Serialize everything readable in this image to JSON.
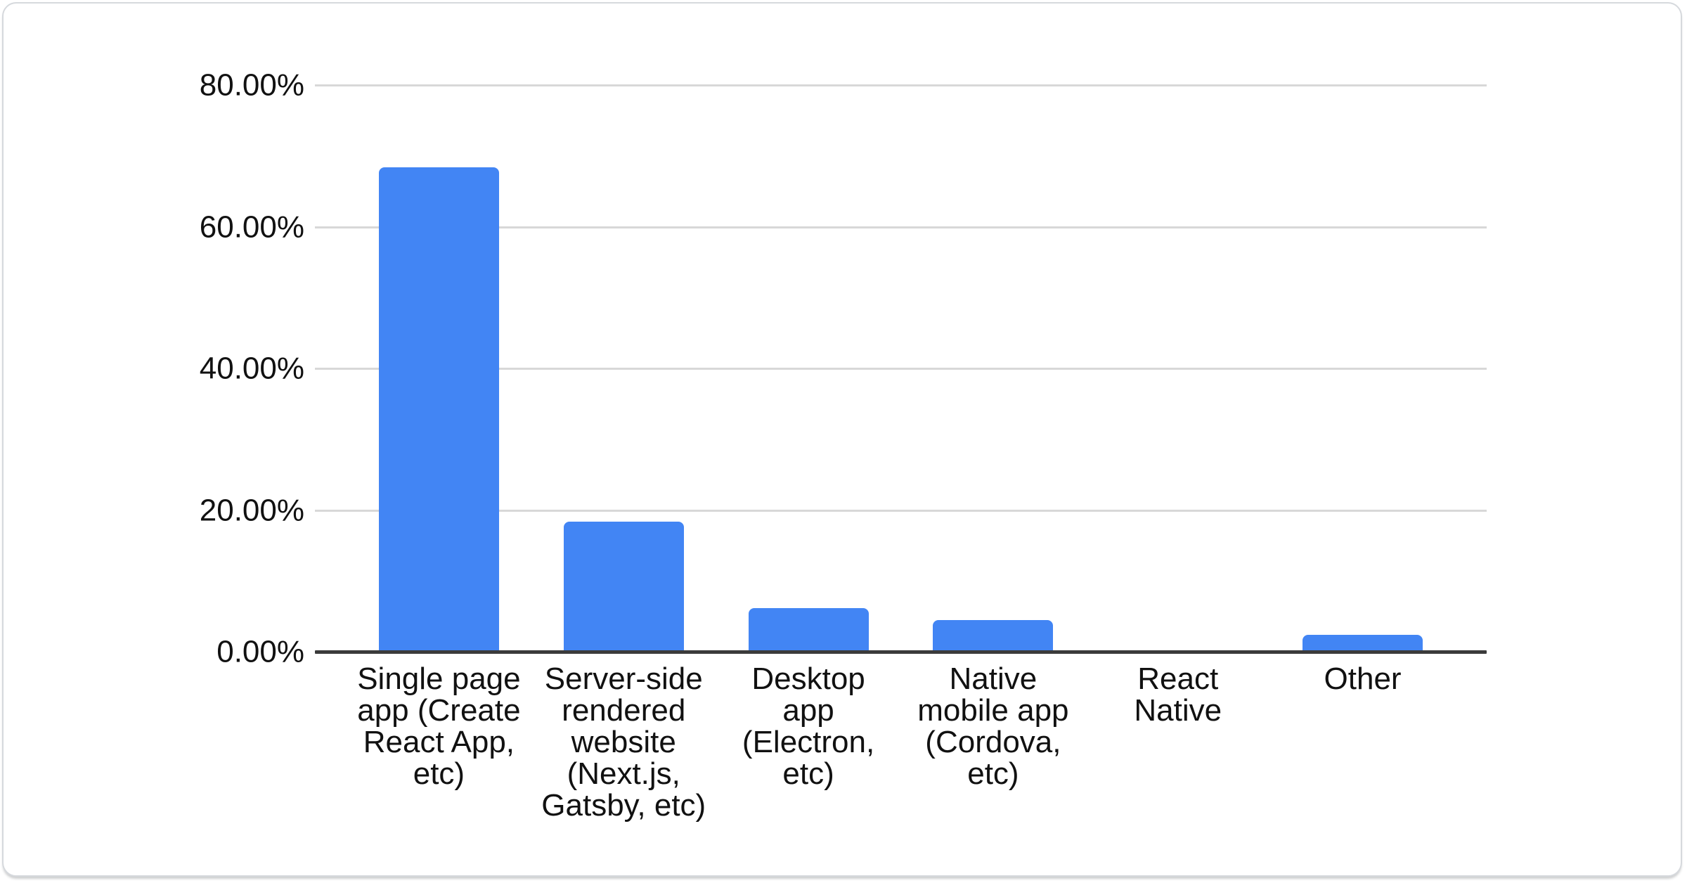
{
  "card": {
    "background": "#ffffff",
    "border_color": "#d6d9dd"
  },
  "chart_data": {
    "type": "bar",
    "title": "",
    "xlabel": "",
    "ylabel": "",
    "legend": "none",
    "grid": true,
    "ylim": [
      0,
      80
    ],
    "unit": "%",
    "categories": [
      "Single page app (Create React App, etc)",
      "Server-side rendered website (Next.js, Gatsby, etc)",
      "Desktop app (Electron, etc)",
      "Native mobile app (Cordova, etc)",
      "React Native",
      "Other"
    ],
    "category_display": [
      "Single page\napp (Create\nReact App,\netc)",
      "Server-side\nrendered\nwebsite\n(Next.js,\nGatsby, etc)",
      "Desktop\napp\n(Electron,\netc)",
      "Native\nmobile app\n(Cordova,\netc)",
      "React\nNative",
      "Other"
    ],
    "values": [
      68.4,
      18.4,
      6.2,
      4.5,
      0,
      2.4
    ],
    "y_ticks": [
      {
        "label": "80.00%",
        "value": 80
      },
      {
        "label": "60.00%",
        "value": 60
      },
      {
        "label": "40.00%",
        "value": 40
      },
      {
        "label": "20.00%",
        "value": 20
      },
      {
        "label": "0.00%",
        "value": 0
      }
    ],
    "colors": {
      "bar": "#4285f4",
      "axis_line": "#3b3b3b",
      "gridline": "#d8d8d8",
      "tick_text": "#111111"
    }
  }
}
